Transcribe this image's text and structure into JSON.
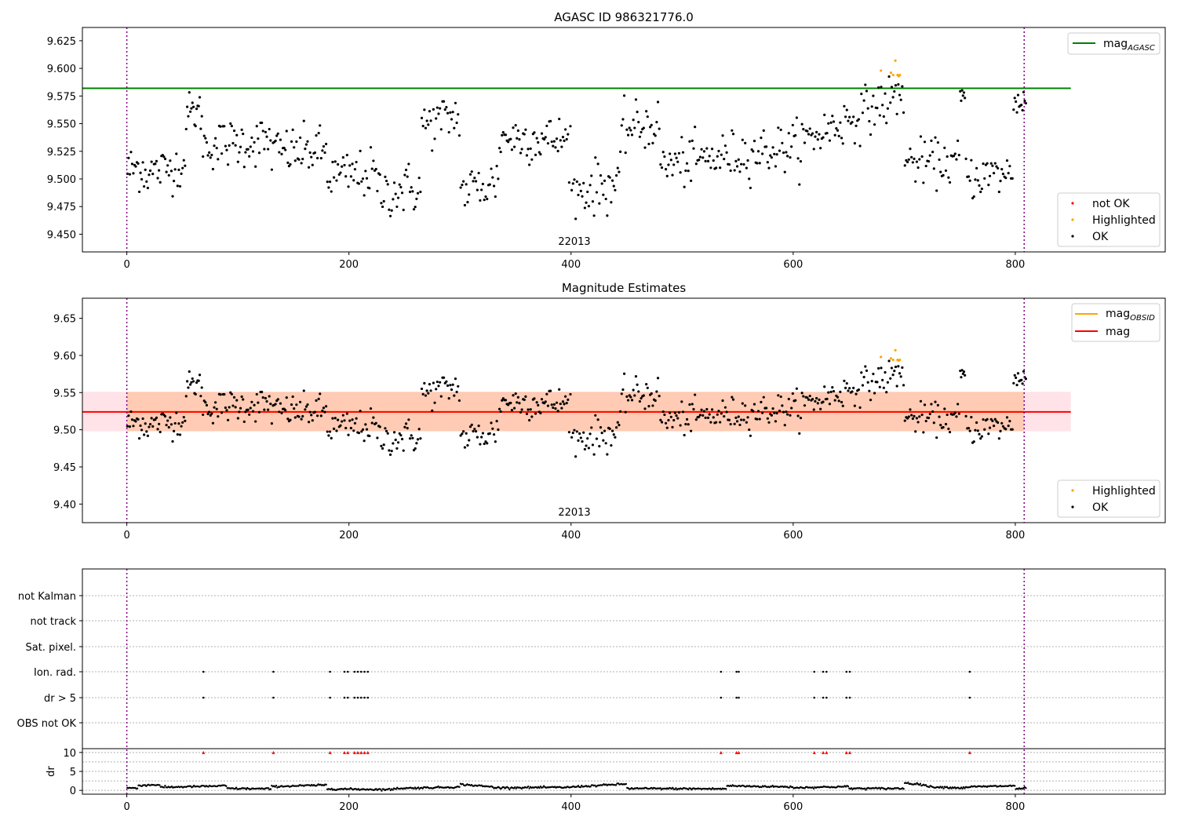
{
  "colors": {
    "ok": "#000000",
    "highlighted": "#ffa500",
    "not_ok": "#ff0000",
    "mag_agasc": "#008000",
    "mag_obsid": "#ffa500",
    "mag": "#ff0000",
    "band_outer": "#ffc0cb",
    "band_inner": "#ffb380",
    "obs_boundary": "#800080",
    "grid": "#b0b0b0"
  },
  "chart_data": [
    {
      "type": "scatter",
      "title": "AGASC ID 986321776.0",
      "xlabel": "",
      "ylabel": "",
      "xlim": [
        -40,
        935
      ],
      "ylim": [
        9.434,
        9.637
      ],
      "xticks": [
        0,
        200,
        400,
        600,
        800
      ],
      "yticks": [
        9.45,
        9.475,
        9.5,
        9.525,
        9.55,
        9.575,
        9.6,
        9.625
      ],
      "ytick_labels": [
        "9.450",
        "9.475",
        "9.500",
        "9.525",
        "9.550",
        "9.575",
        "9.600",
        "9.625"
      ],
      "obsid_label": "22013",
      "obs_boundaries": [
        0,
        808
      ],
      "segments": [
        {
          "x0": 0,
          "x1": 15,
          "y0": 9.508,
          "y1": 9.512,
          "sd": 0.011,
          "n": 14
        },
        {
          "x0": 15,
          "x1": 53,
          "y0": 9.505,
          "y1": 9.513,
          "sd": 0.01,
          "n": 34
        },
        {
          "x0": 53,
          "x1": 68,
          "y0": 9.56,
          "y1": 9.56,
          "sd": 0.009,
          "n": 16
        },
        {
          "x0": 68,
          "x1": 130,
          "y0": 9.53,
          "y1": 9.535,
          "sd": 0.011,
          "n": 55
        },
        {
          "x0": 130,
          "x1": 180,
          "y0": 9.525,
          "y1": 9.525,
          "sd": 0.011,
          "n": 45
        },
        {
          "x0": 180,
          "x1": 225,
          "y0": 9.502,
          "y1": 9.505,
          "sd": 0.011,
          "n": 38
        },
        {
          "x0": 225,
          "x1": 265,
          "y0": 9.488,
          "y1": 9.492,
          "sd": 0.012,
          "n": 34
        },
        {
          "x0": 265,
          "x1": 300,
          "y0": 9.548,
          "y1": 9.558,
          "sd": 0.011,
          "n": 30
        },
        {
          "x0": 300,
          "x1": 335,
          "y0": 9.488,
          "y1": 9.498,
          "sd": 0.012,
          "n": 28
        },
        {
          "x0": 335,
          "x1": 400,
          "y0": 9.538,
          "y1": 9.535,
          "sd": 0.011,
          "n": 58
        },
        {
          "x0": 400,
          "x1": 445,
          "y0": 9.488,
          "y1": 9.497,
          "sd": 0.012,
          "n": 38
        },
        {
          "x0": 445,
          "x1": 480,
          "y0": 9.545,
          "y1": 9.55,
          "sd": 0.011,
          "n": 30
        },
        {
          "x0": 480,
          "x1": 605,
          "y0": 9.512,
          "y1": 9.53,
          "sd": 0.011,
          "n": 105
        },
        {
          "x0": 605,
          "x1": 700,
          "y0": 9.532,
          "y1": 9.578,
          "sd": 0.011,
          "n": 80
        },
        {
          "x0": 700,
          "x1": 750,
          "y0": 9.515,
          "y1": 9.515,
          "sd": 0.01,
          "n": 42
        },
        {
          "x0": 750,
          "x1": 755,
          "y0": 9.574,
          "y1": 9.574,
          "sd": 0.006,
          "n": 6
        },
        {
          "x0": 755,
          "x1": 798,
          "y0": 9.502,
          "y1": 9.505,
          "sd": 0.01,
          "n": 36
        },
        {
          "x0": 798,
          "x1": 810,
          "y0": 9.57,
          "y1": 9.57,
          "sd": 0.007,
          "n": 12
        }
      ],
      "highlighted": {
        "x": [
          679,
          688,
          690,
          692,
          694,
          695,
          696
        ],
        "y": [
          9.598,
          9.596,
          9.594,
          9.607,
          9.594,
          9.593,
          9.594
        ]
      },
      "lines": [
        {
          "name": "mag_AGASC",
          "y": 9.582,
          "x0": -40,
          "x1": 850
        }
      ],
      "legends": [
        {
          "position": "top-right",
          "entries": [
            {
              "kind": "line",
              "label_main": "mag",
              "label_sub": "AGASC"
            }
          ]
        },
        {
          "position": "bottom-right",
          "entries": [
            {
              "kind": "dot",
              "series": "not_ok",
              "label": "not OK"
            },
            {
              "kind": "dot",
              "series": "highlighted",
              "label": "Highlighted"
            },
            {
              "kind": "dot",
              "series": "ok",
              "label": "OK"
            }
          ]
        }
      ]
    },
    {
      "type": "scatter",
      "title": "Magnitude Estimates",
      "xlabel": "",
      "ylabel": "",
      "xlim": [
        -40,
        935
      ],
      "ylim": [
        9.375,
        9.677
      ],
      "xticks": [
        0,
        200,
        400,
        600,
        800
      ],
      "yticks": [
        9.4,
        9.45,
        9.5,
        9.55,
        9.6,
        9.65
      ],
      "ytick_labels": [
        "9.40",
        "9.45",
        "9.50",
        "9.55",
        "9.60",
        "9.65"
      ],
      "obsid_label": "22013",
      "obs_boundaries": [
        0,
        808
      ],
      "bands": [
        {
          "name": "mag_range",
          "y0": 9.498,
          "y1": 9.551,
          "x0": -40,
          "x1": 850
        },
        {
          "name": "obsid_range",
          "y0": 9.498,
          "y1": 9.551,
          "x0": 0,
          "x1": 808
        }
      ],
      "lines": [
        {
          "name": "mag",
          "y": 9.524,
          "x0": -40,
          "x1": 850
        },
        {
          "name": "mag_OBSID",
          "y": 9.524,
          "x0": 0,
          "x1": 808
        }
      ],
      "legends": [
        {
          "position": "top-right",
          "entries": [
            {
              "kind": "line",
              "series": "mag_obsid",
              "label_main": "mag",
              "label_sub": "OBSID"
            },
            {
              "kind": "line",
              "series": "mag",
              "label_main": "mag",
              "label_sub": ""
            }
          ]
        },
        {
          "position": "bottom-right",
          "entries": [
            {
              "kind": "dot",
              "series": "highlighted",
              "label": "Highlighted"
            },
            {
              "kind": "dot",
              "series": "ok",
              "label": "OK"
            }
          ]
        }
      ]
    },
    {
      "type": "scatter",
      "title": "",
      "xlabel": "",
      "ylabel": "dr",
      "xlim": [
        -40,
        935
      ],
      "xticks": [
        0,
        200,
        400,
        600,
        800
      ],
      "flag_rows": [
        "not Kalman",
        "not track",
        "Sat. pixel.",
        "Ion. rad.",
        "dr > 5",
        "OBS not OK"
      ],
      "flag_events": {
        "Ion. rad.": [
          69,
          132,
          183,
          196,
          199,
          205,
          208,
          211,
          214,
          217,
          535,
          549,
          551,
          619,
          627,
          630,
          648,
          651,
          759
        ],
        "dr > 5": [
          69,
          132,
          183,
          196,
          199,
          205,
          208,
          211,
          214,
          217,
          535,
          549,
          551,
          619,
          627,
          630,
          648,
          651,
          759
        ]
      },
      "dr": {
        "ylim": [
          -1,
          11
        ],
        "yticks": [
          0,
          5,
          10
        ],
        "segments": [
          {
            "x0": 0,
            "x1": 10,
            "y0": 0.7,
            "y1": 0.5
          },
          {
            "x0": 10,
            "x1": 30,
            "y0": 1.3,
            "y1": 1.5
          },
          {
            "x0": 30,
            "x1": 90,
            "y0": 0.8,
            "y1": 1.2
          },
          {
            "x0": 90,
            "x1": 130,
            "y0": 0.5,
            "y1": 0.4
          },
          {
            "x0": 130,
            "x1": 180,
            "y0": 1.0,
            "y1": 1.4
          },
          {
            "x0": 180,
            "x1": 240,
            "y0": 0.4,
            "y1": 0.2
          },
          {
            "x0": 240,
            "x1": 300,
            "y0": 0.5,
            "y1": 0.9
          },
          {
            "x0": 300,
            "x1": 330,
            "y0": 1.6,
            "y1": 0.9
          },
          {
            "x0": 330,
            "x1": 400,
            "y0": 0.7,
            "y1": 0.8
          },
          {
            "x0": 400,
            "x1": 450,
            "y0": 0.9,
            "y1": 1.7
          },
          {
            "x0": 450,
            "x1": 540,
            "y0": 0.5,
            "y1": 0.4
          },
          {
            "x0": 540,
            "x1": 600,
            "y0": 1.2,
            "y1": 0.9
          },
          {
            "x0": 600,
            "x1": 650,
            "y0": 0.7,
            "y1": 1.0
          },
          {
            "x0": 650,
            "x1": 700,
            "y0": 0.5,
            "y1": 0.5
          },
          {
            "x0": 700,
            "x1": 720,
            "y0": 2.0,
            "y1": 1.4
          },
          {
            "x0": 720,
            "x1": 755,
            "y0": 1.0,
            "y1": 0.6
          },
          {
            "x0": 755,
            "x1": 800,
            "y0": 0.9,
            "y1": 1.2
          },
          {
            "x0": 800,
            "x1": 810,
            "y0": 0.4,
            "y1": 0.6
          }
        ],
        "clipped_marker_y": 10
      }
    }
  ]
}
